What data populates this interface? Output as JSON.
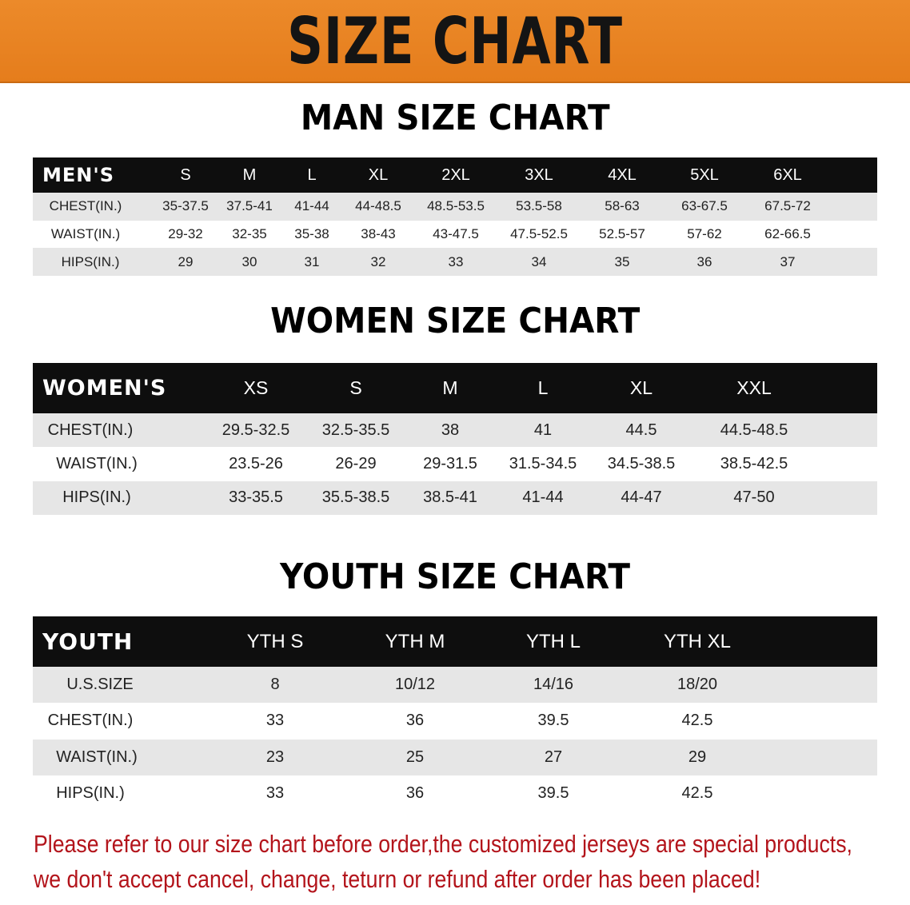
{
  "banner_title": "SIZE CHART",
  "accent_color": "#e8821f",
  "men": {
    "title": "MAN SIZE CHART",
    "header": [
      "MEN'S",
      "S",
      "M",
      "L",
      "XL",
      "2XL",
      "3XL",
      "4XL",
      "5XL",
      "6XL"
    ],
    "rows": [
      [
        "CHEST(IN.)",
        "35-37.5",
        "37.5-41",
        "41-44",
        "44-48.5",
        "48.5-53.5",
        "53.5-58",
        "58-63",
        "63-67.5",
        "67.5-72"
      ],
      [
        "WAIST(IN.)",
        "29-32",
        "32-35",
        "35-38",
        "38-43",
        "43-47.5",
        "47.5-52.5",
        "52.5-57",
        "57-62",
        "62-66.5"
      ],
      [
        "HIPS(IN.)",
        "29",
        "30",
        "31",
        "32",
        "33",
        "34",
        "35",
        "36",
        "37"
      ]
    ]
  },
  "women": {
    "title": "WOMEN SIZE CHART",
    "header": [
      "WOMEN'S",
      "XS",
      "S",
      "M",
      "L",
      "XL",
      "XXL"
    ],
    "rows": [
      [
        "CHEST(IN.)",
        "29.5-32.5",
        "32.5-35.5",
        "38",
        "41",
        "44.5",
        "44.5-48.5"
      ],
      [
        "WAIST(IN.)",
        "23.5-26",
        "26-29",
        "29-31.5",
        "31.5-34.5",
        "34.5-38.5",
        "38.5-42.5"
      ],
      [
        "HIPS(IN.)",
        "33-35.5",
        "35.5-38.5",
        "38.5-41",
        "41-44",
        "44-47",
        "47-50"
      ]
    ]
  },
  "youth": {
    "title": "YOUTH SIZE CHART",
    "header": [
      "YOUTH",
      "YTH S",
      "YTH M",
      "YTH L",
      "YTH XL"
    ],
    "rows": [
      [
        "U.S.SIZE",
        "8",
        "10/12",
        "14/16",
        "18/20"
      ],
      [
        "CHEST(IN.)",
        "33",
        "36",
        "39.5",
        "42.5"
      ],
      [
        "WAIST(IN.)",
        "23",
        "25",
        "27",
        "29"
      ],
      [
        "HIPS(IN.)",
        "33",
        "36",
        "39.5",
        "42.5"
      ]
    ]
  },
  "notice": {
    "line1": "Please refer to our size chart before order,the customized jerseys are special products,",
    "line2": "we don't accept cancel, change, teturn or refund after order has been placed!",
    "color": "#b3141b"
  }
}
